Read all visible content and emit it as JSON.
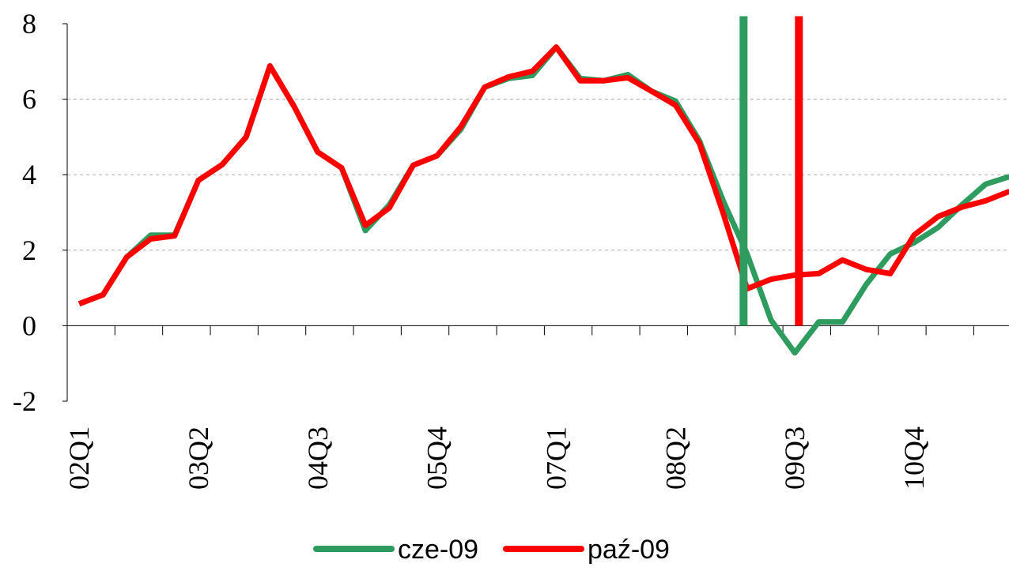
{
  "chart_data": {
    "type": "line",
    "categories": [
      "02Q1",
      null,
      null,
      null,
      null,
      "03Q2",
      null,
      null,
      null,
      null,
      "04Q3",
      null,
      null,
      null,
      null,
      "05Q4",
      null,
      null,
      null,
      null,
      "07Q1",
      null,
      null,
      null,
      null,
      "08Q2",
      null,
      null,
      null,
      null,
      "09Q3",
      null,
      null,
      null,
      null,
      "10Q4",
      null,
      null,
      null,
      null
    ],
    "series": [
      {
        "name": "cze-09",
        "color": "#2e9b5f",
        "values": [
          0.58,
          0.82,
          1.82,
          2.4,
          2.4,
          3.85,
          4.27,
          5.0,
          6.88,
          5.82,
          4.6,
          4.18,
          2.52,
          3.2,
          4.25,
          4.5,
          5.2,
          6.32,
          6.55,
          6.63,
          7.38,
          6.55,
          6.49,
          6.65,
          6.21,
          5.95,
          4.9,
          3.3,
          1.9,
          0.15,
          -0.72,
          0.1,
          0.1,
          1.1,
          1.9,
          2.2,
          2.6,
          3.2,
          3.75,
          3.95
        ]
      },
      {
        "name": "paź-09",
        "color": "#ff0000",
        "values": [
          0.58,
          0.82,
          1.82,
          2.3,
          2.38,
          3.85,
          4.27,
          5.0,
          6.88,
          5.82,
          4.6,
          4.18,
          2.66,
          3.12,
          4.25,
          4.5,
          5.27,
          6.32,
          6.59,
          6.74,
          7.38,
          6.49,
          6.49,
          6.57,
          6.21,
          5.84,
          4.83,
          2.97,
          0.98,
          1.23,
          1.34,
          1.38,
          1.74,
          1.49,
          1.38,
          2.4,
          2.89,
          3.14,
          3.31,
          3.56
        ]
      }
    ],
    "vlines": [
      {
        "x": 27.85,
        "color": "#2e9b5f",
        "ymin": 0,
        "ymax": 8.2
      },
      {
        "x": 30.17,
        "color": "#ff0000",
        "ymin": 0,
        "ymax": 8.2
      }
    ],
    "ylim": [
      -2,
      8
    ],
    "yticks": [
      -2,
      0,
      2,
      4,
      6,
      8
    ],
    "grid": true,
    "legend": "bottom"
  }
}
